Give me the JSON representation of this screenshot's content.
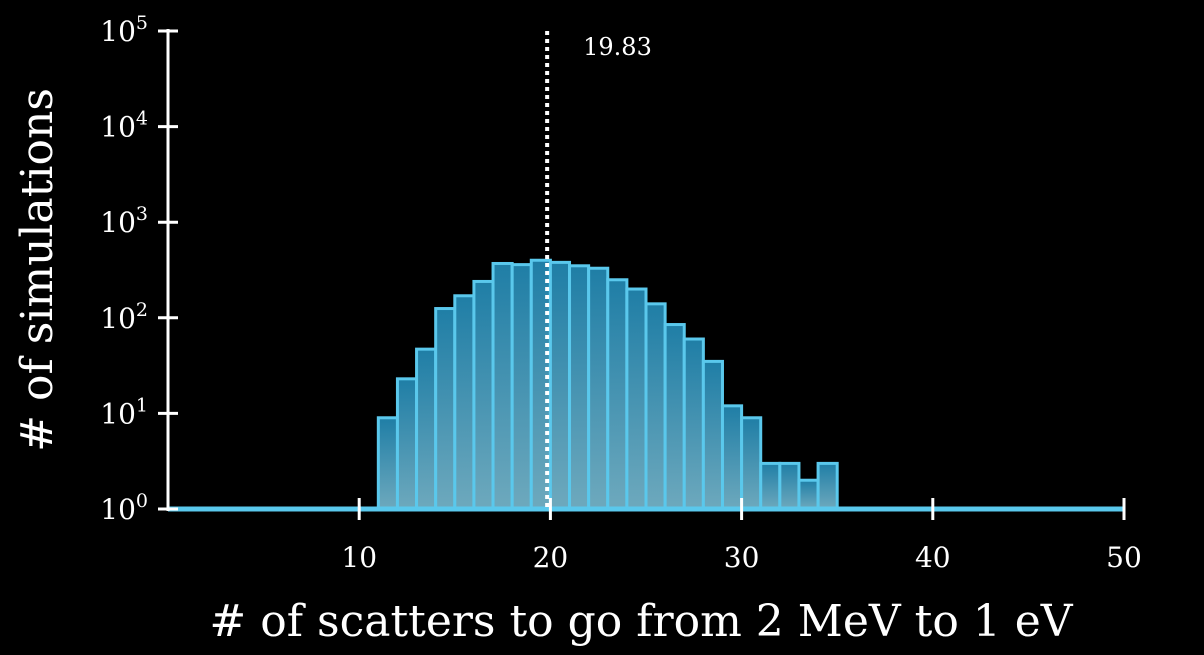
{
  "chart_data": {
    "type": "bar",
    "title": "",
    "xlabel": "# of scatters to go from 2 MeV to 1 eV",
    "ylabel": "# of simulations",
    "xlim": [
      0,
      50
    ],
    "ylim": [
      1,
      100000
    ],
    "yscale": "log",
    "grid": false,
    "legend": "none",
    "x_ticks": [
      {
        "value": 10,
        "label": "10"
      },
      {
        "value": 20,
        "label": "20"
      },
      {
        "value": 30,
        "label": "30"
      },
      {
        "value": 40,
        "label": "40"
      },
      {
        "value": 50,
        "label": "50"
      }
    ],
    "y_ticks": [
      {
        "value": 1,
        "base": "10",
        "exp": "0"
      },
      {
        "value": 10,
        "base": "10",
        "exp": "1"
      },
      {
        "value": 100,
        "base": "10",
        "exp": "2"
      },
      {
        "value": 1000,
        "base": "10",
        "exp": "3"
      },
      {
        "value": 10000,
        "base": "10",
        "exp": "4"
      },
      {
        "value": 100000,
        "base": "10",
        "exp": "5"
      }
    ],
    "bin_width": 1,
    "bins": [
      11,
      12,
      13,
      14,
      15,
      16,
      17,
      18,
      19,
      20,
      21,
      22,
      23,
      24,
      25,
      26,
      27,
      28,
      29,
      30,
      31,
      32,
      33,
      34
    ],
    "values": [
      9,
      23,
      47,
      125,
      170,
      240,
      370,
      360,
      400,
      380,
      350,
      330,
      250,
      200,
      140,
      85,
      60,
      35,
      12,
      9,
      3,
      3,
      2,
      3
    ],
    "mean_line": {
      "value": 19.83,
      "label": "19.83"
    },
    "colors": {
      "bar_fill_top": "#1f7ea6",
      "bar_fill_bottom": "#6ea9bd",
      "bar_stroke": "#5ac8ec",
      "axis": "#ffffff",
      "background": "#000000"
    }
  }
}
